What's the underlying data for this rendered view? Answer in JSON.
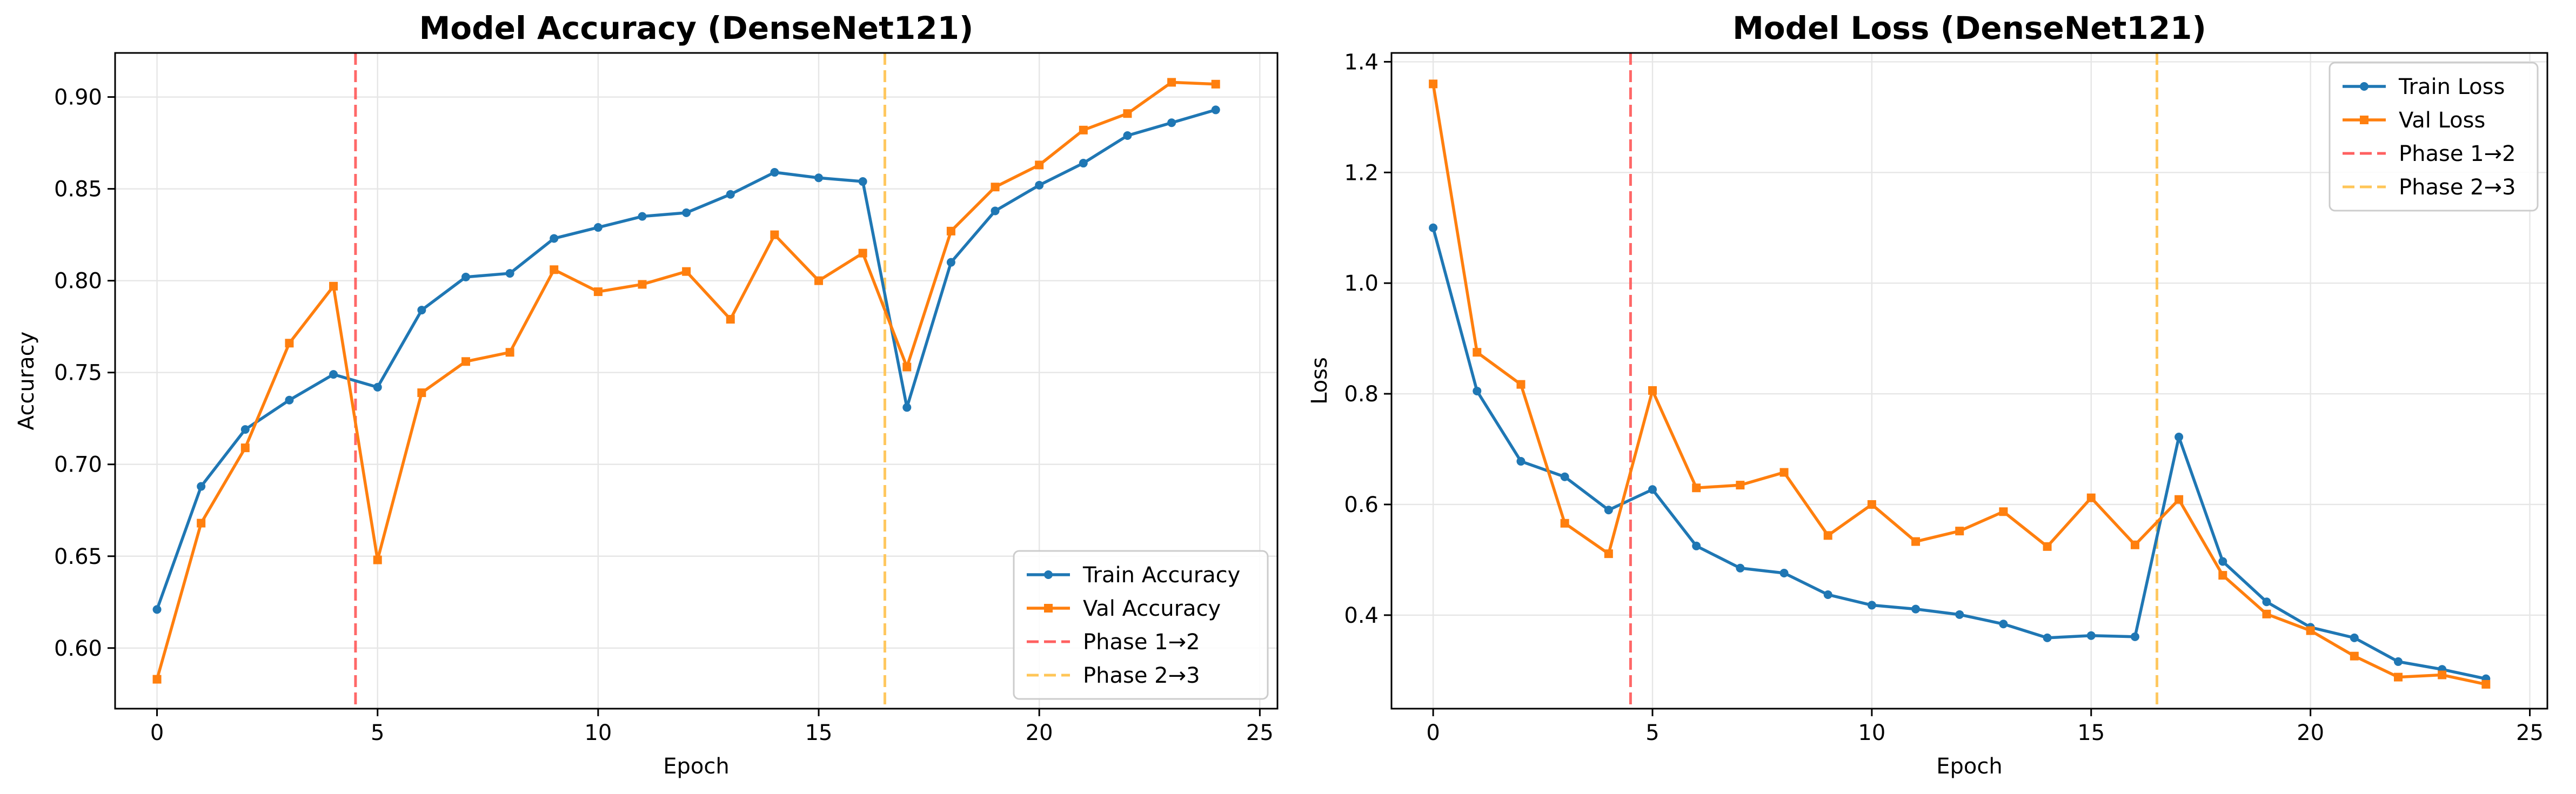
{
  "chart_data": [
    {
      "type": "line",
      "title": "Model Accuracy (DenseNet121)",
      "xlabel": "Epoch",
      "ylabel": "Accuracy",
      "xlim": [
        -0.95,
        25.4
      ],
      "ylim": [
        0.567,
        0.924
      ],
      "xticks": [
        0,
        5,
        10,
        15,
        20,
        25
      ],
      "xtick_labels": [
        "0",
        "5",
        "10",
        "15",
        "20",
        "25"
      ],
      "yticks": [
        0.6,
        0.65,
        0.7,
        0.75,
        0.8,
        0.85,
        0.9
      ],
      "ytick_labels": [
        "0.60",
        "0.65",
        "0.70",
        "0.75",
        "0.80",
        "0.85",
        "0.90"
      ],
      "grid": true,
      "legend_position": "lower right",
      "x": [
        0,
        1,
        2,
        3,
        4,
        5,
        6,
        7,
        8,
        9,
        10,
        11,
        12,
        13,
        14,
        15,
        16,
        17,
        18,
        19,
        20,
        21,
        22,
        23,
        24
      ],
      "series": [
        {
          "name": "Train Accuracy",
          "color": "#1f77b4",
          "marker": "circle",
          "values": [
            0.621,
            0.688,
            0.719,
            0.735,
            0.749,
            0.742,
            0.784,
            0.802,
            0.804,
            0.823,
            0.829,
            0.835,
            0.837,
            0.847,
            0.859,
            0.856,
            0.854,
            0.731,
            0.81,
            0.838,
            0.852,
            0.864,
            0.879,
            0.886,
            0.893
          ]
        },
        {
          "name": "Val Accuracy",
          "color": "#ff7f0e",
          "marker": "square",
          "values": [
            0.583,
            0.668,
            0.709,
            0.766,
            0.797,
            0.648,
            0.739,
            0.756,
            0.761,
            0.806,
            0.794,
            0.798,
            0.805,
            0.779,
            0.825,
            0.8,
            0.815,
            0.753,
            0.827,
            0.851,
            0.863,
            0.882,
            0.891,
            0.908,
            0.907
          ]
        }
      ],
      "vlines": [
        {
          "name": "Phase 1→2",
          "x": 4.5,
          "color": "#ff6060"
        },
        {
          "name": "Phase 2→3",
          "x": 16.5,
          "color": "#ffc658"
        }
      ]
    },
    {
      "type": "line",
      "title": "Model Loss (DenseNet121)",
      "xlabel": "Epoch",
      "ylabel": "Loss",
      "xlim": [
        -0.95,
        25.4
      ],
      "ylim": [
        0.231,
        1.416
      ],
      "xticks": [
        0,
        5,
        10,
        15,
        20,
        25
      ],
      "xtick_labels": [
        "0",
        "5",
        "10",
        "15",
        "20",
        "25"
      ],
      "yticks": [
        0.4,
        0.6,
        0.8,
        1.0,
        1.2,
        1.4
      ],
      "ytick_labels": [
        "0.4",
        "0.6",
        "0.8",
        "1.0",
        "1.2",
        "1.4"
      ],
      "grid": true,
      "legend_position": "upper right",
      "x": [
        0,
        1,
        2,
        3,
        4,
        5,
        6,
        7,
        8,
        9,
        10,
        11,
        12,
        13,
        14,
        15,
        16,
        17,
        18,
        19,
        20,
        21,
        22,
        23,
        24
      ],
      "series": [
        {
          "name": "Train Loss",
          "color": "#1f77b4",
          "marker": "circle",
          "values": [
            1.1,
            0.805,
            0.678,
            0.65,
            0.59,
            0.627,
            0.525,
            0.485,
            0.476,
            0.437,
            0.418,
            0.411,
            0.401,
            0.384,
            0.359,
            0.363,
            0.361,
            0.722,
            0.497,
            0.424,
            0.378,
            0.359,
            0.316,
            0.302,
            0.285
          ]
        },
        {
          "name": "Val Loss",
          "color": "#ff7f0e",
          "marker": "square",
          "values": [
            1.36,
            0.875,
            0.817,
            0.566,
            0.511,
            0.806,
            0.63,
            0.635,
            0.658,
            0.544,
            0.6,
            0.533,
            0.552,
            0.587,
            0.524,
            0.612,
            0.527,
            0.609,
            0.472,
            0.402,
            0.372,
            0.326,
            0.288,
            0.292,
            0.275
          ]
        }
      ],
      "vlines": [
        {
          "name": "Phase 1→2",
          "x": 4.5,
          "color": "#ff6060"
        },
        {
          "name": "Phase 2→3",
          "x": 16.5,
          "color": "#ffc658"
        }
      ]
    }
  ]
}
